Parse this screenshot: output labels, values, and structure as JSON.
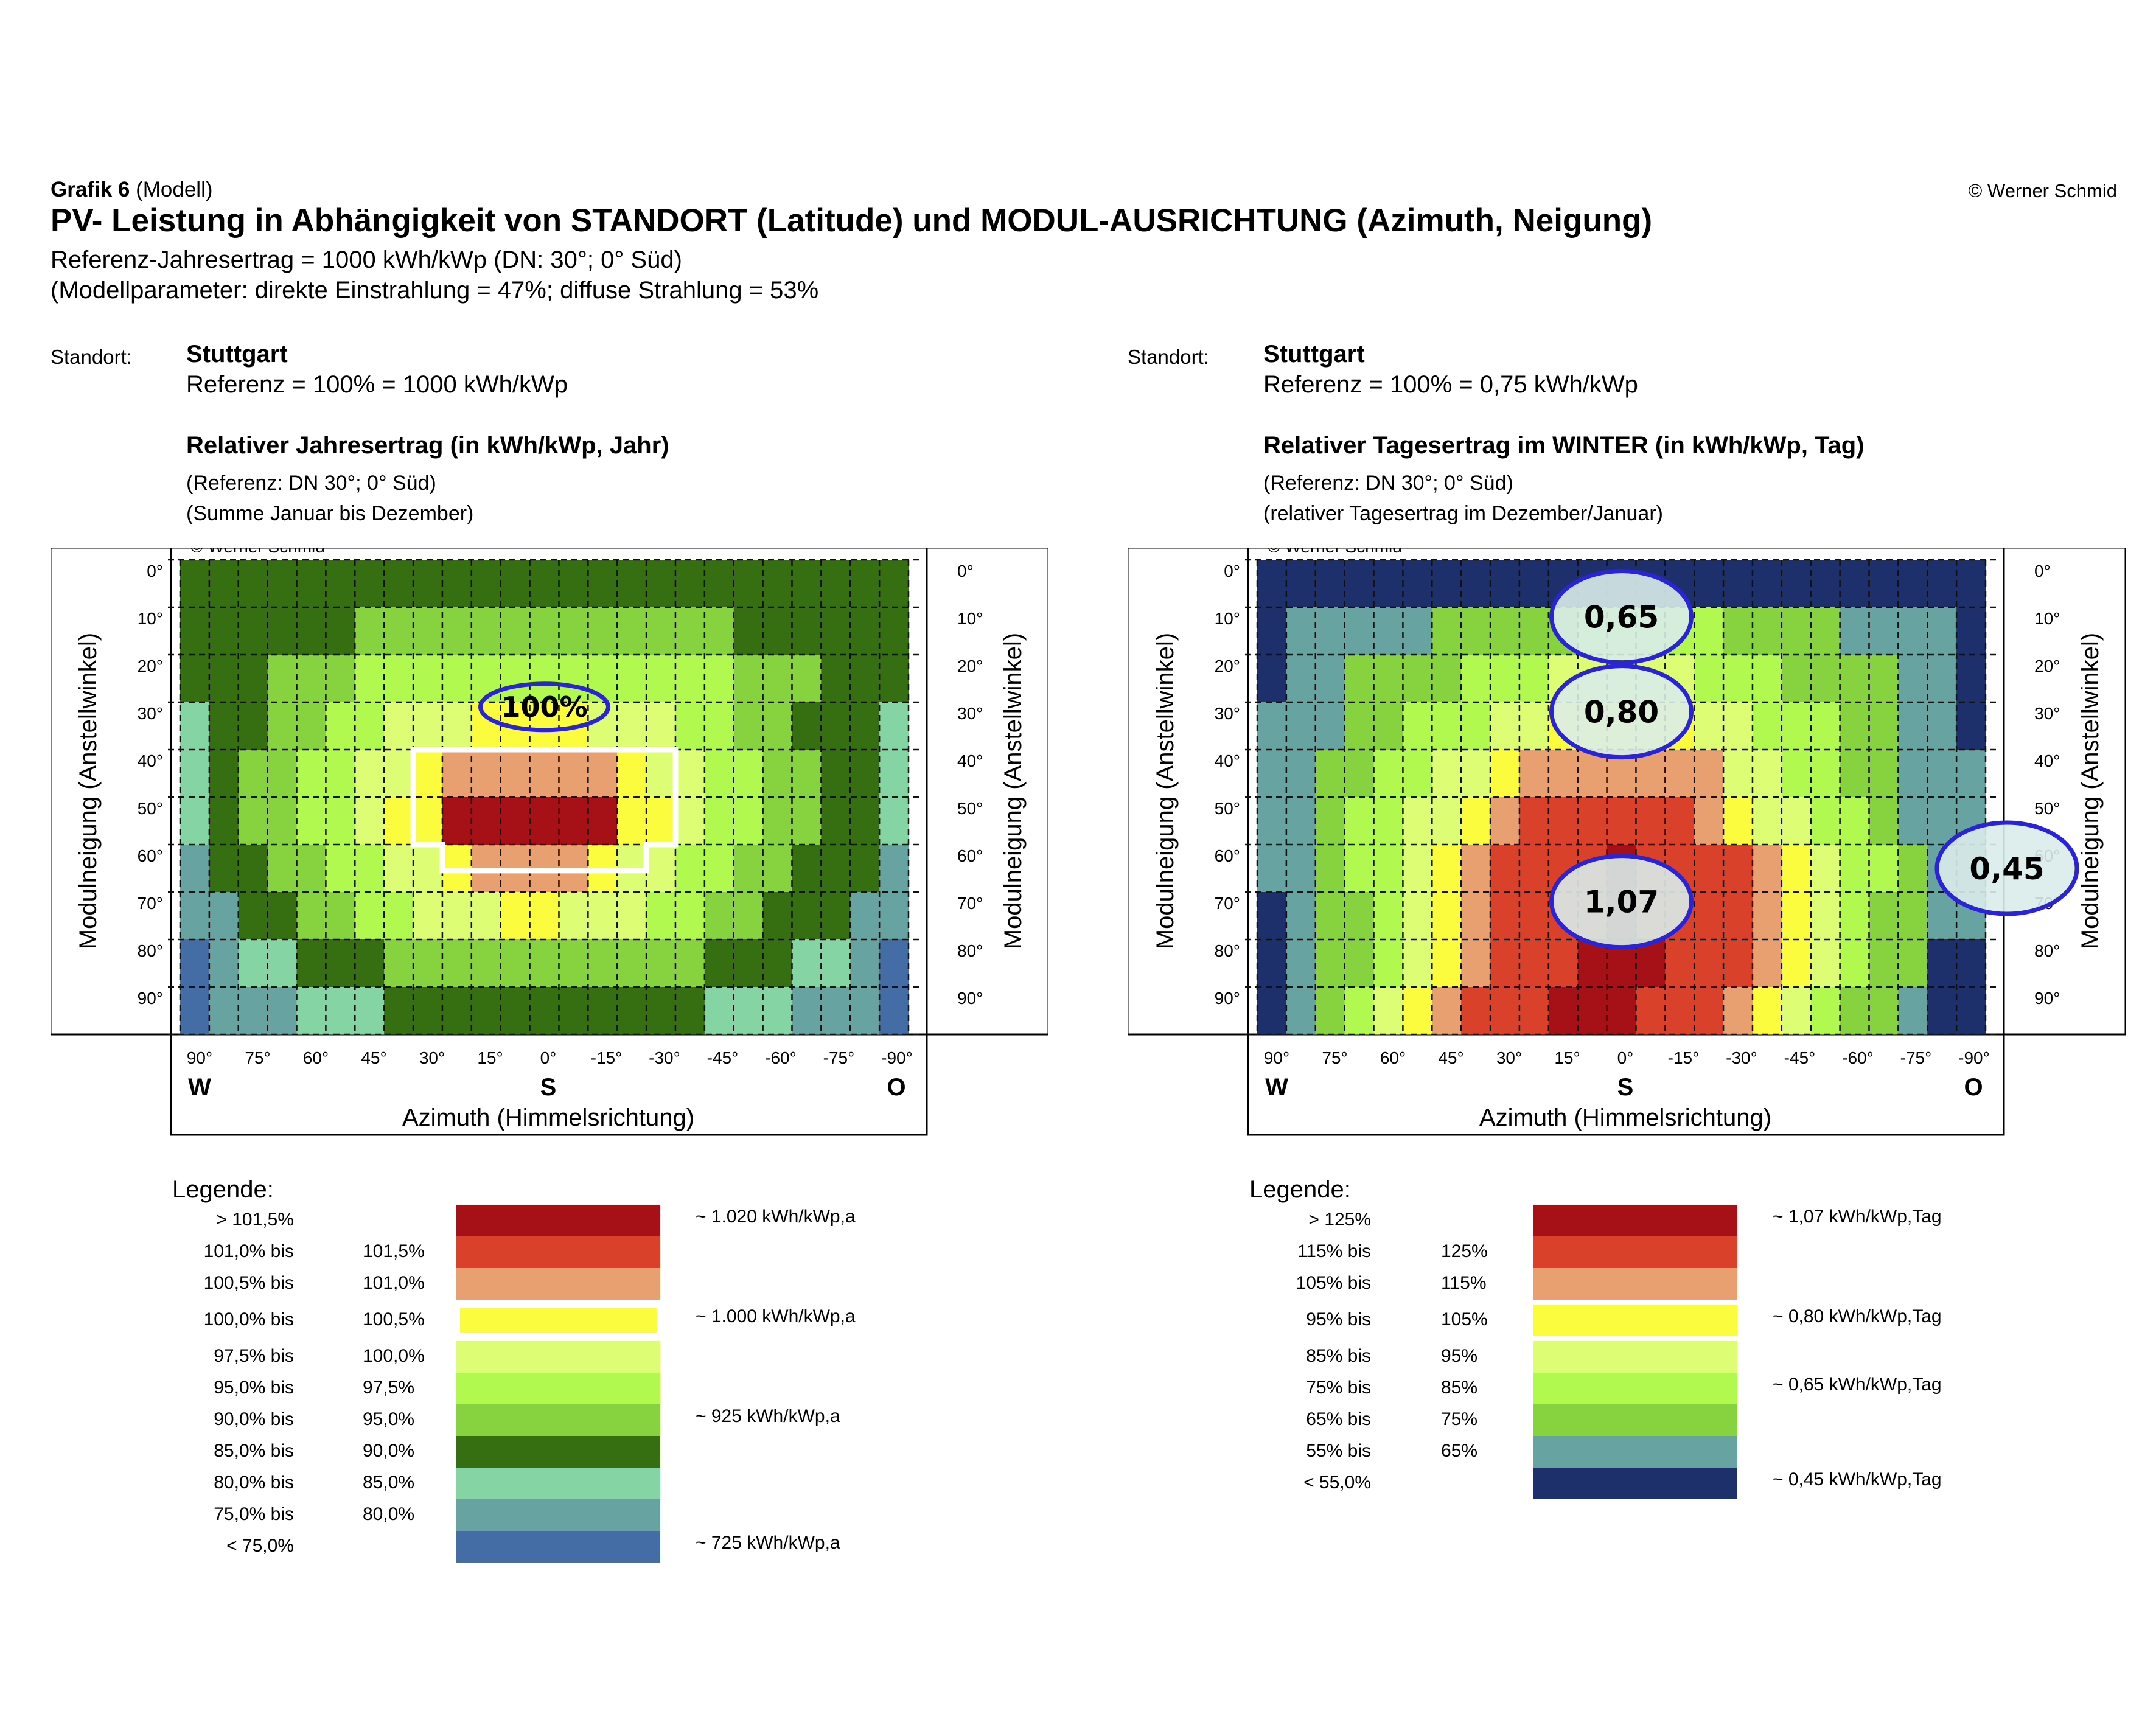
{
  "header": {
    "grafik_bold": "Grafik 6",
    "grafik_rest": " (Modell)",
    "copyright": "© Werner Schmid",
    "title": "PV- Leistung in Abhängigkeit von STANDORT (Latitude) und MODUL-AUSRICHTUNG (Azimuth, Neigung)",
    "line1": "Referenz-Jahresertrag = 1000 kWh/kWp (DN: 30°; 0° Süd)",
    "line2": "(Modellparameter: direkte Einstrahlung = 47%; diffuse Strahlung = 53%"
  },
  "colors": {
    "c10": "#a51116",
    "c9": "#d9412a",
    "c8": "#e8a070",
    "c7": "#fcfc3e",
    "c6": "#dcfd74",
    "c5": "#b1f84f",
    "c4": "#86d33f",
    "c3": "#366f11",
    "c2": "#84d4a4",
    "c1": "#67a3a1",
    "c0": "#436da4",
    "w0": "#1d306b"
  },
  "panels": [
    {
      "standort_label": "Standort:",
      "city": "Stuttgart",
      "reference": "Referenz = 100% = 1000 kWh/kWp",
      "chart_title": "Relativer Jahresertrag (in kWh/kWp, Jahr)",
      "note1": "(Referenz:  DN 30°;  0° Süd)",
      "note2": "(Summe Januar bis Dezember)",
      "legend_title": "Legende:",
      "legend": [
        {
          "from": "> 101,5%",
          "to": "",
          "color": "#a51116",
          "value": "~ 1.020 kWh/kWp,a"
        },
        {
          "from": "101,0% bis",
          "to": "101,5%",
          "color": "#d9412a",
          "value": ""
        },
        {
          "from": "100,5% bis",
          "to": "101,0%",
          "color": "#e8a070",
          "value": ""
        },
        {
          "from": "100,0% bis",
          "to": "100,5%",
          "color": "#fcfc3e",
          "value": "~ 1.000 kWh/kWp,a"
        },
        {
          "from": "97,5% bis",
          "to": "100,0%",
          "color": "#dcfd74",
          "value": ""
        },
        {
          "from": "95,0% bis",
          "to": "97,5%",
          "color": "#b1f84f",
          "value": ""
        },
        {
          "from": "90,0% bis",
          "to": "95,0%",
          "color": "#86d33f",
          "value": "~ 925 kWh/kWp,a"
        },
        {
          "from": "85,0% bis",
          "to": "90,0%",
          "color": "#366f11",
          "value": ""
        },
        {
          "from": "80,0% bis",
          "to": "85,0%",
          "color": "#84d4a4",
          "value": ""
        },
        {
          "from": "75,0% bis",
          "to": "80,0%",
          "color": "#67a3a1",
          "value": ""
        },
        {
          "from": "< 75,0%",
          "to": "",
          "color": "#436da4",
          "value": "~ 725 kWh/kWp,a"
        }
      ]
    },
    {
      "standort_label": "Standort:",
      "city": "Stuttgart",
      "reference": "Referenz = 100% = 0,75 kWh/kWp",
      "chart_title": "Relativer Tagesertrag im WINTER (in kWh/kWp, Tag)",
      "note1": "(Referenz:  DN 30°;  0° Süd)",
      "note2": "(relativer Tagesertrag im Dezember/Januar)",
      "legend_title": "Legende:",
      "legend": [
        {
          "from": "> 125%",
          "to": "",
          "color": "#a51116",
          "value": "~ 1,07 kWh/kWp,Tag"
        },
        {
          "from": "115% bis",
          "to": "125%",
          "color": "#d9412a",
          "value": ""
        },
        {
          "from": "105% bis",
          "to": "115%",
          "color": "#e8a070",
          "value": ""
        },
        {
          "from": "95% bis",
          "to": "105%",
          "color": "#fcfc3e",
          "value": "~ 0,80 kWh/kWp,Tag"
        },
        {
          "from": "85% bis",
          "to": "95%",
          "color": "#dcfd74",
          "value": ""
        },
        {
          "from": "75% bis",
          "to": "85%",
          "color": "#b1f84f",
          "value": "~ 0,65 kWh/kWp,Tag"
        },
        {
          "from": "65% bis",
          "to": "75%",
          "color": "#86d33f",
          "value": ""
        },
        {
          "from": "55% bis",
          "to": "65%",
          "color": "#67a3a1",
          "value": ""
        },
        {
          "from": "< 55,0%",
          "to": "",
          "color": "#1d306b",
          "value": "~ 0,45 kWh/kWp,Tag"
        }
      ]
    }
  ],
  "chart_data": [
    {
      "type": "heatmap",
      "title": "Relativer Jahresertrag (in kWh/kWp, Jahr)",
      "chart_copyright": "© Werner Schmid",
      "xlabel": "Azimuth (Himmelsrichtung)",
      "ylabel": "Modulneigung (Anstellwinkel)",
      "x_ticks": [
        "90°",
        "75°",
        "60°",
        "45°",
        "30°",
        "15°",
        "0°",
        "-15°",
        "-30°",
        "-45°",
        "-60°",
        "-75°",
        "-90°"
      ],
      "x_dirs": [
        "W",
        "S",
        "O"
      ],
      "y_ticks": [
        "0°",
        "10°",
        "20°",
        "30°",
        "40°",
        "50°",
        "60°",
        "70°",
        "80°",
        "90°"
      ],
      "highlight": "100%",
      "color_classes_by_row": [
        "3333333333333333333333333",
        "3333334444444444444333333",
        "3334445555555555555444333",
        "2334455666777766655443332",
        "2344556678888887665544332",
        "2344556779999997765544332",
        "1334455667888876655443331",
        "1133445566677666554433311",
        "0122333444444444443332210",
        "0111222333333333332221110"
      ]
    },
    {
      "type": "heatmap",
      "title": "Relativer Tagesertrag im WINTER (in kWh/kWp, Tag)",
      "chart_copyright": "© Werner Schmid",
      "xlabel": "Azimuth (Himmelsrichtung)",
      "ylabel": "Modulneigung (Anstellwinkel)",
      "x_ticks": [
        "90°",
        "75°",
        "60°",
        "45°",
        "30°",
        "15°",
        "0°",
        "-15°",
        "-30°",
        "-45°",
        "-60°",
        "-75°",
        "-90°"
      ],
      "x_dirs": [
        "W",
        "S",
        "O"
      ],
      "y_ticks": [
        "0°",
        "10°",
        "20°",
        "30°",
        "40°",
        "50°",
        "60°",
        "70°",
        "80°",
        "90°"
      ],
      "annotations": [
        {
          "label": "0,65",
          "row": 1,
          "col": 12
        },
        {
          "label": "0,80",
          "row": 3,
          "col": 12
        },
        {
          "label": "1,07",
          "row": 7,
          "col": 12
        },
        {
          "label": "0,45",
          "row": 6,
          "col": 24
        }
      ],
      "color_classes_by_row": [
        "wwwwwwwwwwwwwwwwwwwwwwwww",
        "w11111444445555544441111w",
        "w11444455566666555444411w",
        "111445556677777665554411w",
        "11445566788888886655441111",
        "11455667899999987665541111",
        "114556789999A999987655411",
        "w14456789999A999987654411w",
        "w1445678999AAA999876544w",
        "w145678999AAA9998765441w"
      ]
    }
  ]
}
